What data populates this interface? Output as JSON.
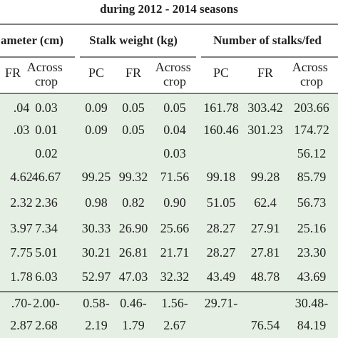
{
  "header": {
    "title": "during 2012 - 2014 seasons"
  },
  "table": {
    "groups": [
      "ameter (cm)",
      "Stalk weight (kg)",
      "Number of stalks/fed"
    ],
    "columns": [
      "FR",
      "Across crop",
      "PC",
      "FR",
      "Across crop",
      "PC",
      "FR",
      "Across crop"
    ],
    "rows": [
      [
        ".04",
        "0.03",
        "0.09",
        "0.05",
        "0.05",
        "161.78",
        "303.42",
        "203.66"
      ],
      [
        ".03",
        "0.01",
        "0.09",
        "0.05",
        "0.04",
        "160.46",
        "301.23",
        "174.72"
      ],
      [
        null,
        "0.02",
        null,
        null,
        "0.03",
        null,
        null,
        "56.12"
      ],
      [
        "4.62",
        "46.67",
        "99.25",
        "99.32",
        "71.56",
        "99.18",
        "99.28",
        "85.79"
      ],
      [
        "2.32",
        "2.36",
        "0.98",
        "0.82",
        "0.90",
        "51.05",
        "62.4",
        "56.73"
      ],
      [
        "3.97",
        "7.34",
        "30.33",
        "26.90",
        "25.66",
        "28.27",
        "27.91",
        "25.16"
      ],
      [
        "7.75",
        "5.01",
        "30.21",
        "26.81",
        "21.71",
        "28.27",
        "27.81",
        "23.30"
      ],
      [
        "1.78",
        "6.03",
        "52.97",
        "47.03",
        "32.32",
        "43.49",
        "48.78",
        "43.69"
      ],
      [
        ".70-",
        "2.00-",
        "0.58-",
        "0.46-",
        "1.56-",
        "29.71-",
        null,
        "30.48-"
      ],
      [
        "2.87",
        "2.68",
        "2.19",
        "1.79",
        "2.67",
        null,
        "76.54",
        "84.19"
      ]
    ]
  }
}
